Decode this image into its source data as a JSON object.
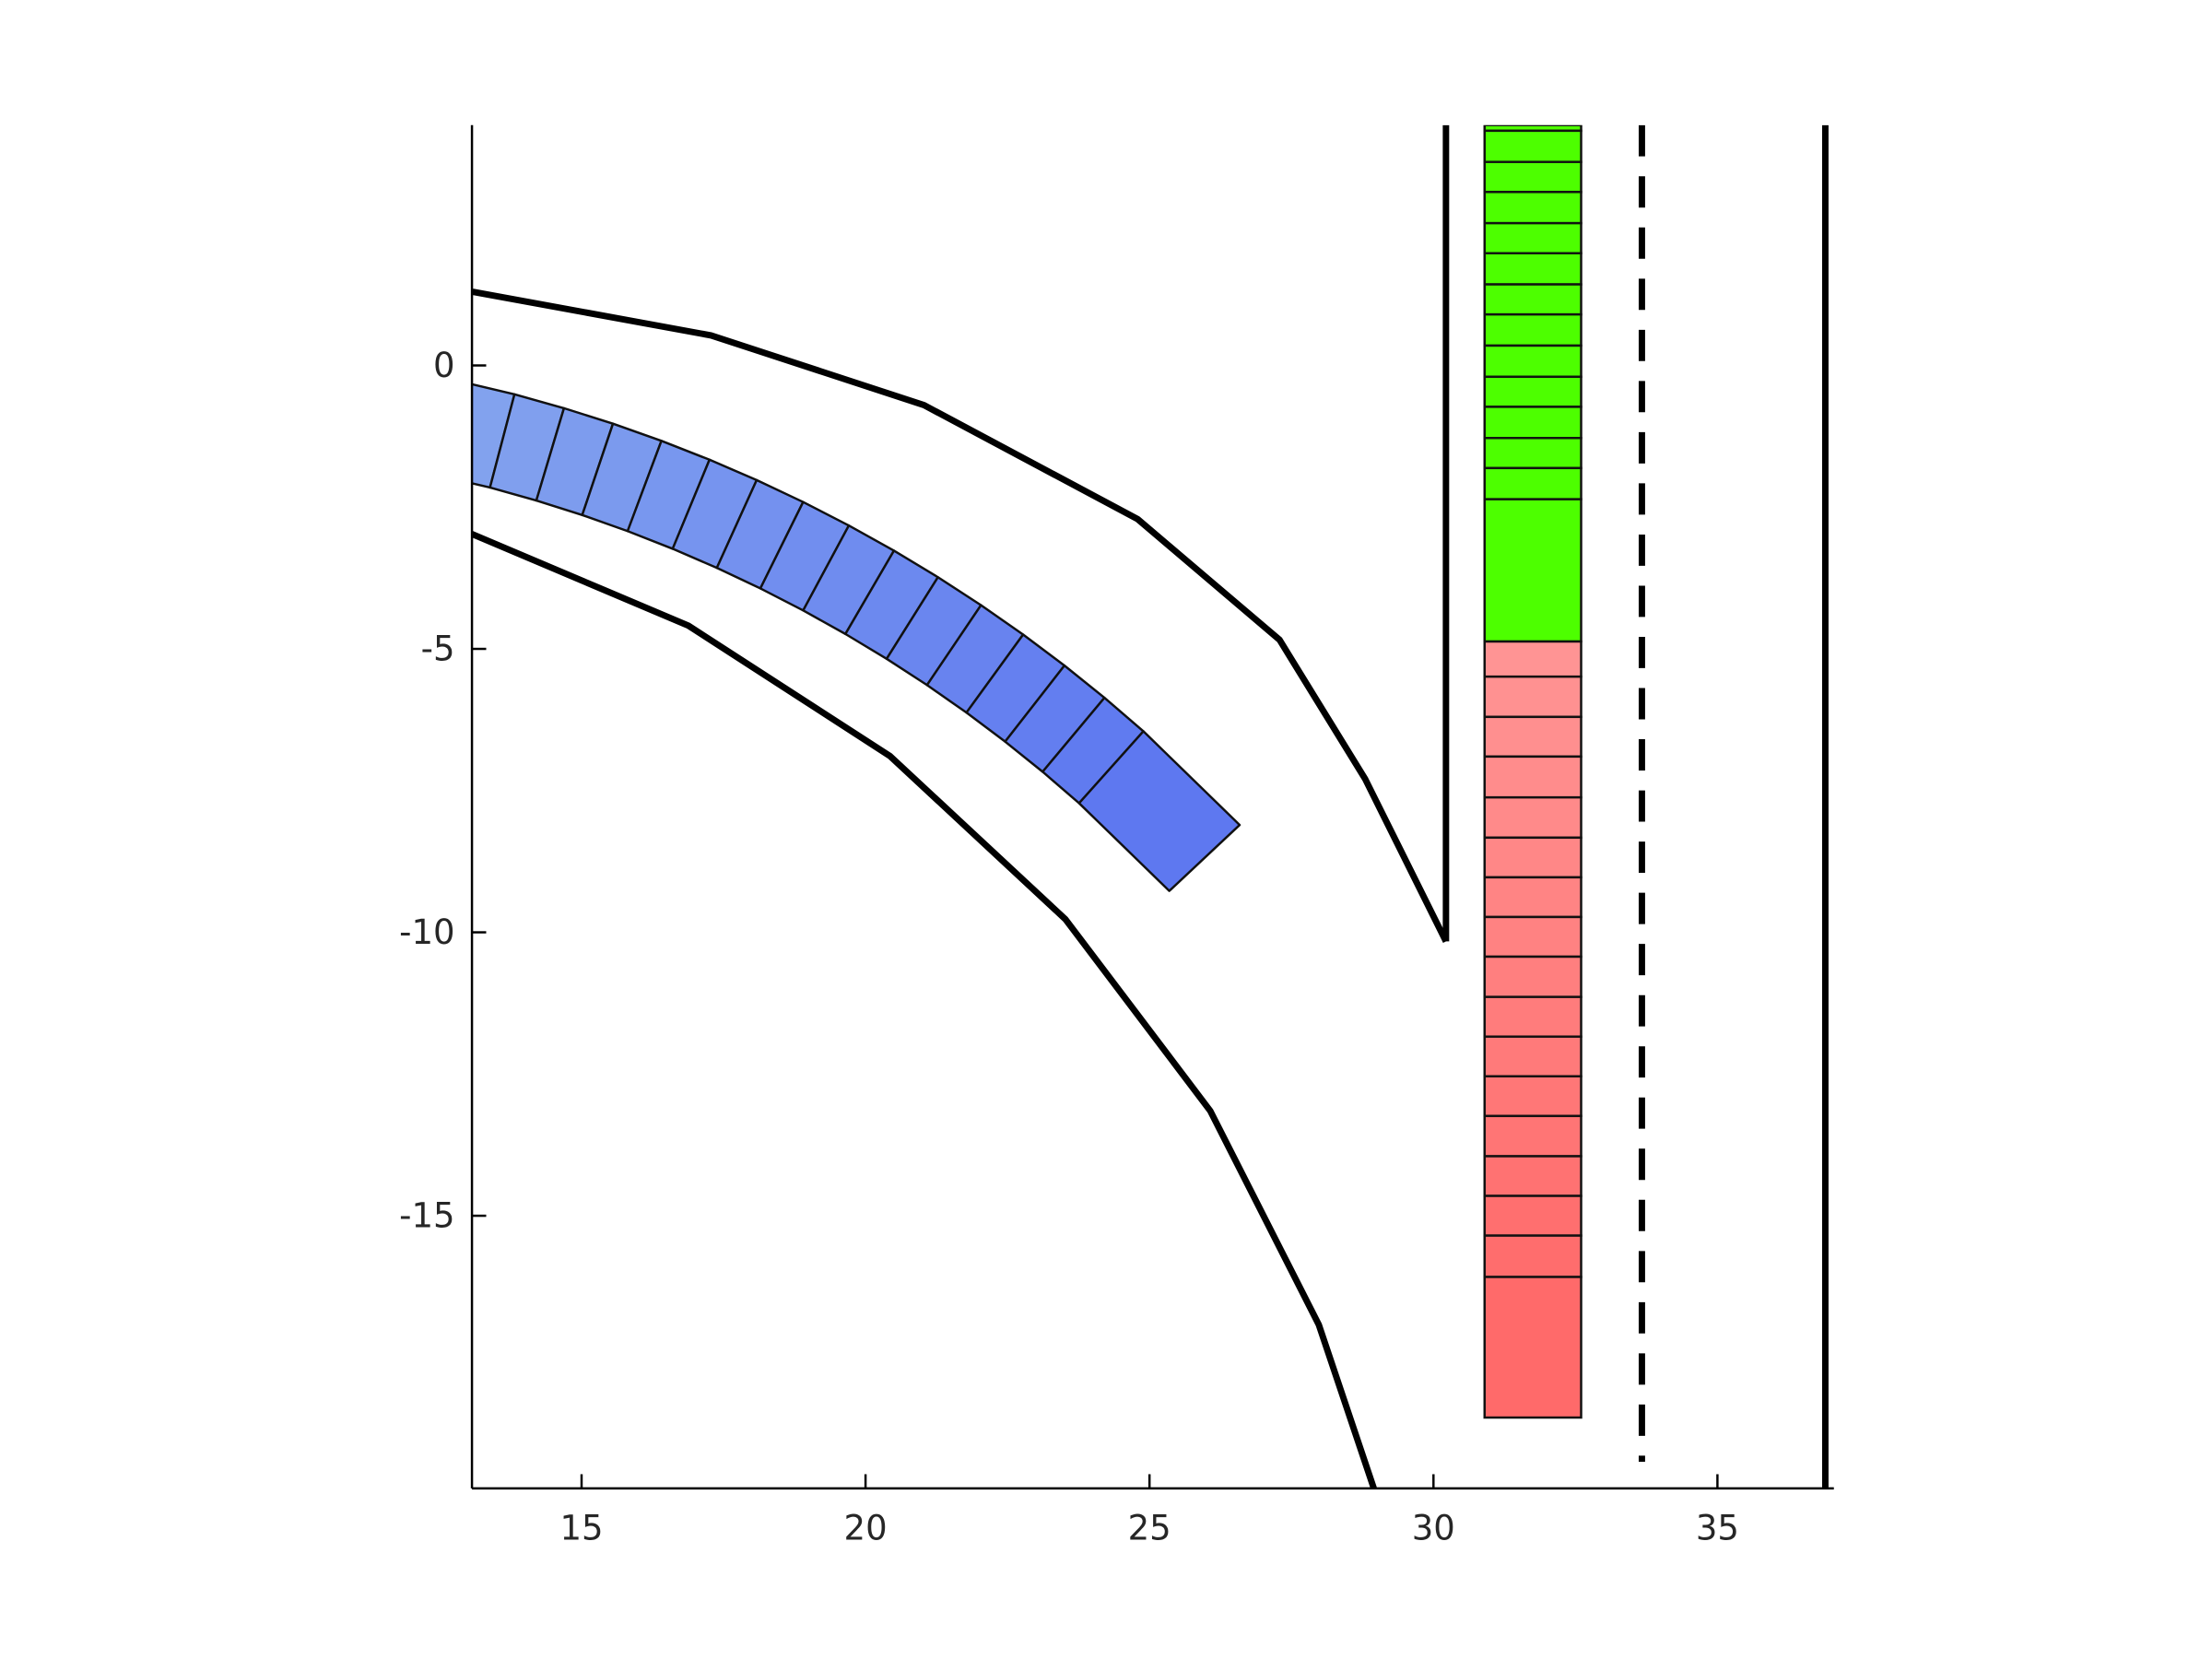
{
  "chart_data": {
    "type": "occupancy",
    "xlim": [
      13.07,
      37.05
    ],
    "ylim": [
      -19.81,
      4.24
    ],
    "xticks": [
      15,
      20,
      25,
      30,
      35
    ],
    "yticks": [
      0,
      -5,
      -10,
      -15
    ],
    "boundaries": [
      {
        "style": "solid",
        "x": [
          13.08,
          17.28,
          21.03,
          24.79,
          27.29,
          28.8,
          30.22
        ],
        "y": [
          1.3,
          0.53,
          -0.7,
          -2.71,
          -4.84,
          -7.3,
          -10.16
        ]
      },
      {
        "style": "solid",
        "x": [
          30.22,
          30.22
        ],
        "y": [
          -10.16,
          4.24
        ]
      },
      {
        "style": "solid",
        "x": [
          12.99,
          16.88,
          20.43,
          23.52,
          26.07,
          27.98,
          28.95
        ],
        "y": [
          -2.94,
          -4.59,
          -6.89,
          -9.77,
          -13.15,
          -16.92,
          -19.81
        ]
      },
      {
        "style": "dashed",
        "x": [
          33.67,
          33.67
        ],
        "y": [
          4.24,
          -19.34
        ]
      },
      {
        "style": "solid",
        "x": [
          36.9,
          36.9
        ],
        "y": [
          4.24,
          -19.81
        ]
      }
    ],
    "green_cells": {
      "x": [
        30.9,
        32.6
      ],
      "color_start": "#4dff00",
      "color_end": "#4dff00",
      "boundaries": [
        4.24,
        4.14,
        3.59,
        3.06,
        2.51,
        1.98,
        1.43,
        0.9,
        0.35,
        -0.2,
        -0.73,
        -1.28,
        -1.81,
        -2.36,
        -4.87
      ]
    },
    "red_cells": {
      "x": [
        30.9,
        32.6
      ],
      "color_start": "#ff9494",
      "color_end": "#ff6a6a",
      "boundaries": [
        -4.87,
        -5.49,
        -6.2,
        -6.9,
        -7.62,
        -8.33,
        -9.03,
        -9.73,
        -10.43,
        -11.14,
        -11.84,
        -12.54,
        -13.24,
        -13.95,
        -14.65,
        -15.35,
        -16.08,
        -18.56
      ]
    },
    "blue_cells": {
      "center": [
        7,
        -26.5
      ],
      "inner_radius": 25.17,
      "outer_radius": 26.87,
      "color_start": "#82a2ee",
      "color_end": "#5e78f0",
      "angles": [
        78,
        75.3,
        73.37,
        71.44,
        69.51,
        67.57,
        65.64,
        63.71,
        61.78,
        59.84,
        57.91,
        55.98,
        54.05,
        52.11,
        50.18,
        48.25,
        43.2
      ]
    }
  }
}
